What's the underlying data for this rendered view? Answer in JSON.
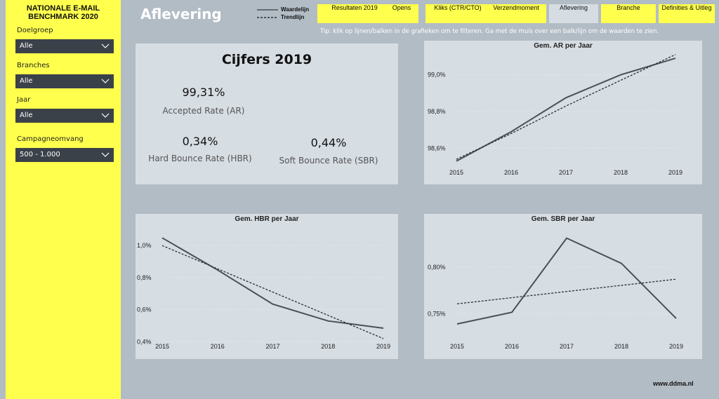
{
  "sidebar": {
    "title": "NATIONALE E-MAIL BENCHMARK 2020",
    "filters": [
      {
        "label": "Doelgroep",
        "value": "Alle"
      },
      {
        "label": "Branches",
        "value": "Alle"
      },
      {
        "label": "Jaar",
        "value": "Alle"
      },
      {
        "label": "Campagneomvang",
        "value": "500 - 1.000"
      }
    ]
  },
  "header": {
    "title": "Aflevering",
    "legend": [
      {
        "name": "Waardelijn",
        "color": "#4a5058",
        "dash": "solid"
      },
      {
        "name": "Trendlijn",
        "color": "#2b2f34",
        "dash": "dashed"
      }
    ],
    "tabs": [
      "Resultaten 2019",
      "Opens",
      "Kliks (CTR/CTO)",
      "Verzendmoment",
      "Aflevering",
      "Branche",
      "Definities & Uitleg"
    ],
    "active_tab": 4,
    "tip": "Tip: klik op lijnen/balken in de grafieken om te filteren. Ga met de muis over een balk/lijn om de waarden te zien."
  },
  "kpi": {
    "title": "Cijfers 2019",
    "items": [
      {
        "value": "99,31%",
        "label": "Accepted Rate (AR)"
      },
      {
        "value": "0,34%",
        "label": "Hard Bounce Rate (HBR)"
      },
      {
        "value": "0,44%",
        "label": "Soft Bounce Rate (SBR)"
      }
    ]
  },
  "charts": [
    {
      "type": "line",
      "title": "Gem. AR per Jaar",
      "categories": [
        "2015",
        "2016",
        "2017",
        "2018",
        "2019"
      ],
      "series": [
        {
          "values": [
            98.53,
            98.69,
            98.875,
            99.0,
            99.09
          ]
        },
        {
          "values": [
            98.54,
            98.68,
            98.83,
            98.97,
            99.11
          ]
        }
      ],
      "ylim": [
        98.51,
        99.14
      ],
      "yticks": [
        {
          "value": 98.6,
          "label": "98,6%"
        },
        {
          "value": 98.8,
          "label": "98,8%"
        },
        {
          "value": 99.0,
          "label": "99,0%"
        }
      ],
      "grid": true
    },
    {
      "type": "line",
      "title": "Gem. HBR per Jaar",
      "categories": [
        "2015",
        "2016",
        "2017",
        "2018",
        "2019"
      ],
      "series": [
        {
          "values": [
            1.048,
            0.848,
            0.635,
            0.53,
            0.485
          ]
        },
        {
          "values": [
            1.0,
            0.855,
            0.71,
            0.565,
            0.42
          ]
        }
      ],
      "ylim": [
        0.38,
        1.11
      ],
      "yticks": [
        {
          "value": 0.4,
          "label": "0,4%"
        },
        {
          "value": 0.6,
          "label": "0,6%"
        },
        {
          "value": 0.8,
          "label": "0,8%"
        },
        {
          "value": 1.0,
          "label": "1,0%"
        }
      ],
      "grid": true
    },
    {
      "type": "line",
      "title": "Gem. SBR per Jaar",
      "categories": [
        "2015",
        "2016",
        "2017",
        "2018",
        "2019"
      ],
      "series": [
        {
          "values": [
            0.739,
            0.7515,
            0.831,
            0.804,
            0.745
          ]
        },
        {
          "values": [
            0.7606,
            0.7672,
            0.7738,
            0.7804,
            0.787
          ]
        }
      ],
      "ylim": [
        0.733,
        0.842
      ],
      "yticks": [
        {
          "value": 0.75,
          "label": "0,75%"
        },
        {
          "value": 0.8,
          "label": "0,80%"
        }
      ],
      "grid": true
    }
  ],
  "footer": "www.ddma.nl"
}
